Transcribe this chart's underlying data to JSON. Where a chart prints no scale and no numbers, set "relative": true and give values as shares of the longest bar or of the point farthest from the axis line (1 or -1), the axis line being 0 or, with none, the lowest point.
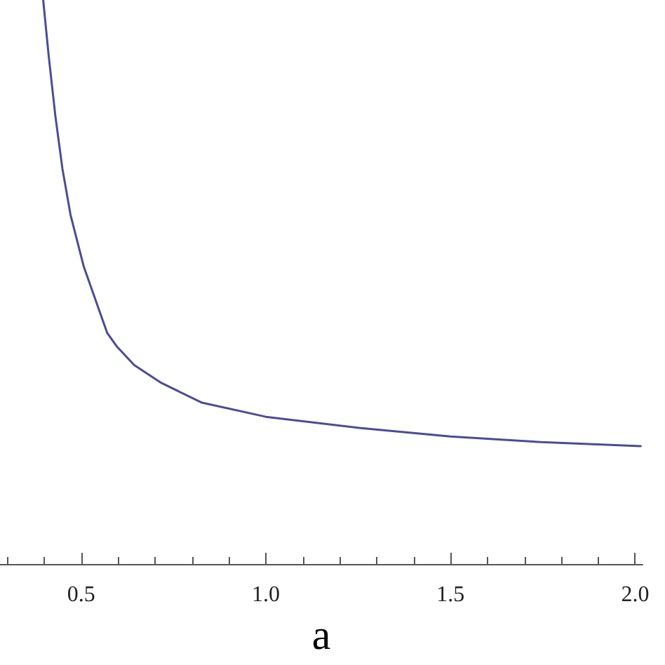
{
  "chart_data": {
    "type": "line",
    "xlabel": "a",
    "relative": true,
    "marker": "none",
    "line_style": "solid",
    "xlim": [
      0.28,
      2.02
    ],
    "xticks": [
      {
        "value": 0.3,
        "label": null
      },
      {
        "value": 0.4,
        "label": null
      },
      0.5,
      {
        "value": 0.6,
        "label": null
      },
      {
        "value": 0.7,
        "label": null
      },
      {
        "value": 0.8,
        "label": null
      },
      {
        "value": 0.9,
        "label": null
      },
      {
        "value": 1,
        "label": "1.0"
      },
      {
        "value": 1.1,
        "label": null
      },
      {
        "value": 1.2,
        "label": null
      },
      {
        "value": 1.3,
        "label": null
      },
      {
        "value": 1.4,
        "label": null
      },
      1.5,
      {
        "value": 1.6,
        "label": null
      },
      {
        "value": 1.7,
        "label": null
      },
      {
        "value": 1.8,
        "label": null
      },
      {
        "value": 1.9,
        "label": null
      },
      {
        "value": 2,
        "label": "2.0"
      }
    ],
    "series": [
      {
        "color": "#4b4b9a",
        "x": [
          0.397,
          0.412,
          0.43,
          0.449,
          0.471,
          0.507,
          0.57,
          0.596,
          0.643,
          0.717,
          0.827,
          1.0,
          1.257,
          1.5,
          1.746,
          2.015
        ],
        "values": [
          1.0,
          0.9,
          0.794,
          0.701,
          0.619,
          0.527,
          0.41,
          0.386,
          0.353,
          0.321,
          0.286,
          0.261,
          0.241,
          0.226,
          0.216,
          0.209
        ]
      }
    ]
  }
}
